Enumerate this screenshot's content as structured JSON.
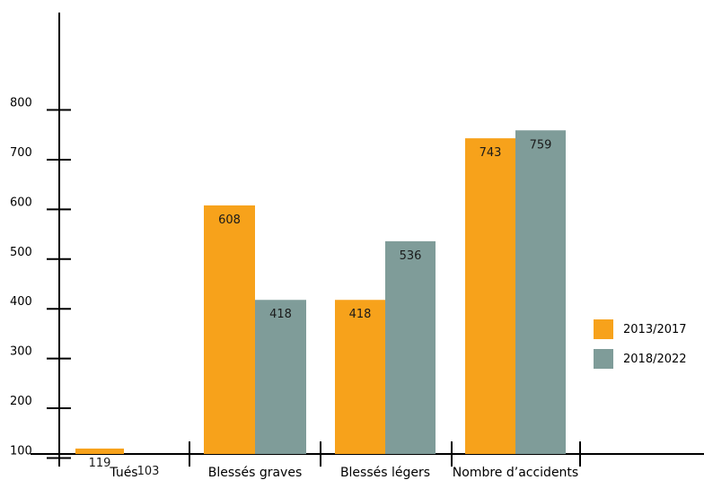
{
  "chart_data": {
    "type": "bar",
    "categories": [
      "Tués",
      "Blessés graves",
      "Blessés légers",
      "Nombre d’accidents"
    ],
    "series": [
      {
        "name": "2013/2017",
        "color": "#f7a21b",
        "values": [
          119,
          608,
          418,
          743
        ]
      },
      {
        "name": "2018/2022",
        "color": "#7f9c99",
        "values": [
          103,
          418,
          536,
          759
        ]
      }
    ],
    "yticks": [
      100,
      200,
      300,
      400,
      500,
      600,
      700,
      800
    ],
    "ylim": [
      0,
      900
    ],
    "title": "",
    "xlabel": "",
    "ylabel": "",
    "legend_position": "right",
    "grid": false
  }
}
